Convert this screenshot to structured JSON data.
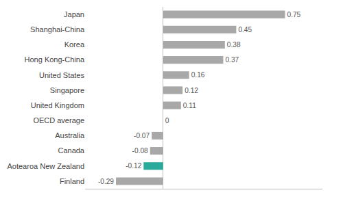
{
  "chart_data": {
    "type": "bar",
    "orientation": "horizontal",
    "categories": [
      "Japan",
      "Shanghai-China",
      "Korea",
      "Hong Kong-China",
      "United States",
      "Singapore",
      "United Kingdom",
      "OECD average",
      "Australia",
      "Canada",
      "Aotearoa New Zealand",
      "Finland"
    ],
    "values": [
      0.75,
      0.45,
      0.38,
      0.37,
      0.16,
      0.12,
      0.11,
      0.0,
      -0.07,
      -0.08,
      -0.12,
      -0.29
    ],
    "colors": [
      "#a8a8a8",
      "#a8a8a8",
      "#a8a8a8",
      "#a8a8a8",
      "#a8a8a8",
      "#a8a8a8",
      "#a8a8a8",
      "#a8a8a8",
      "#a8a8a8",
      "#a8a8a8",
      "#2aaa9a",
      "#a8a8a8"
    ],
    "xlim": [
      -0.48,
      0.98
    ],
    "data_labels": true,
    "tick_labels": "y",
    "grid": false
  }
}
